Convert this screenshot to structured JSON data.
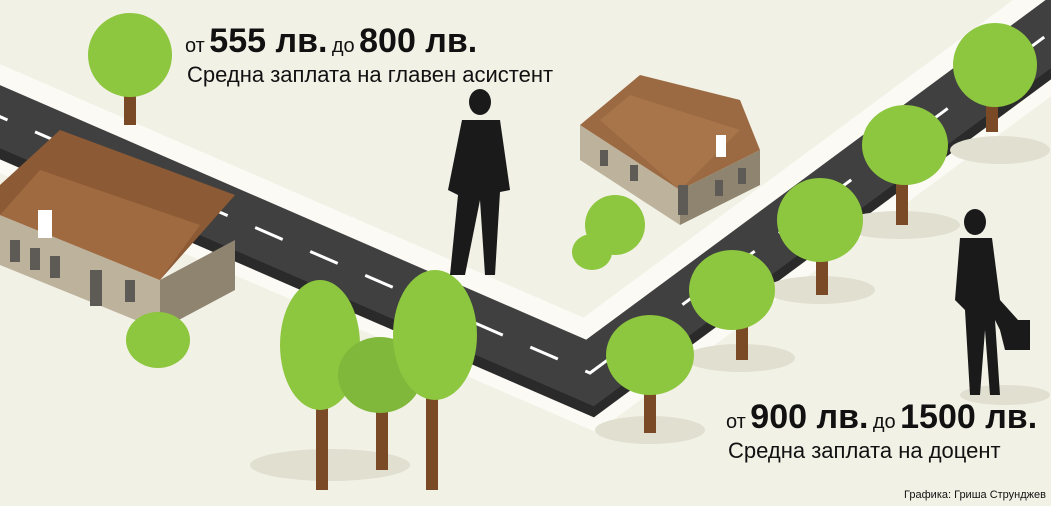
{
  "labels": [
    {
      "from": "от",
      "min": "555 лв.",
      "to": "до",
      "max": "800 лв.",
      "caption": "Средна заплата на главен асистент"
    },
    {
      "from": "от",
      "min": "900 лв.",
      "to": "до",
      "max": "1500 лв.",
      "caption": "Средна заплата на доцент"
    }
  ],
  "credit": "Графика: Гриша Струнджев"
}
